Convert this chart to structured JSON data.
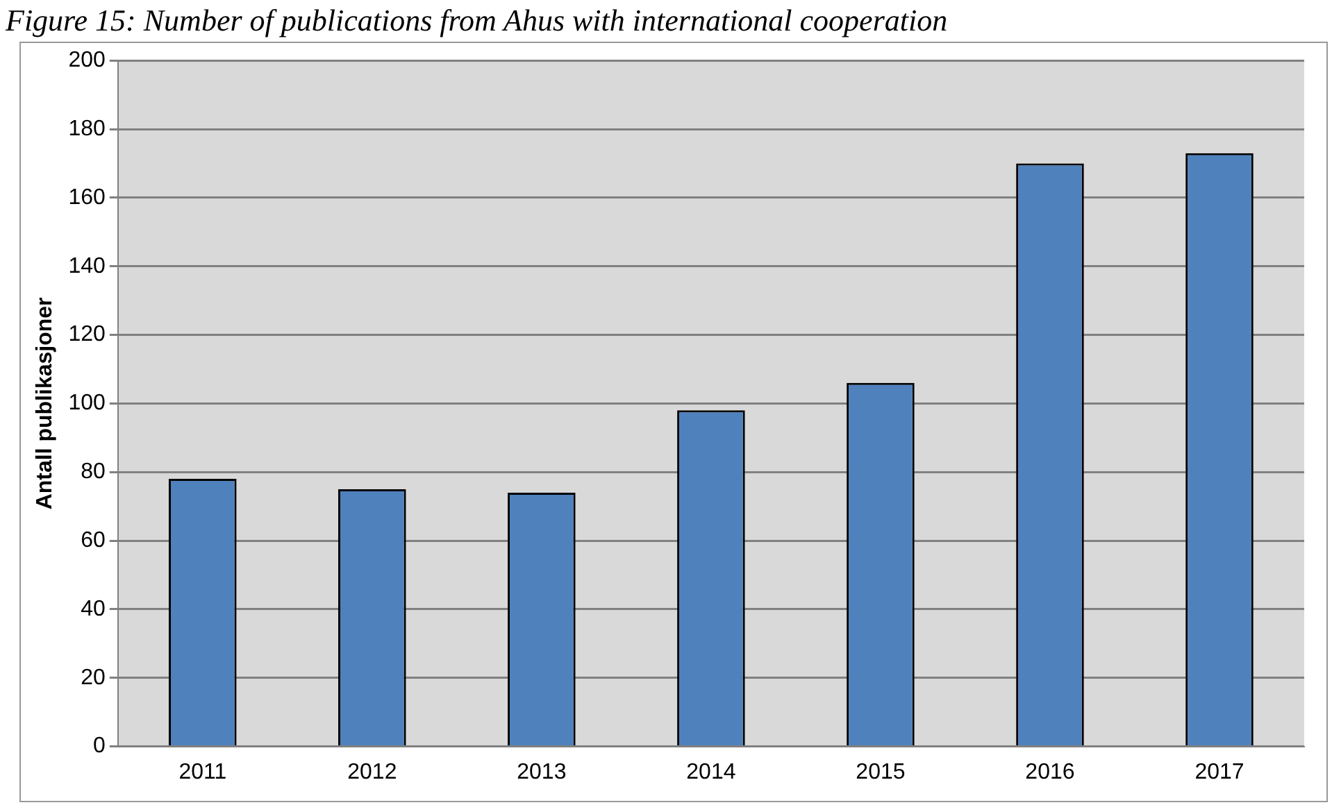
{
  "chart_data": {
    "type": "bar",
    "title": "Figure 15: Number of publications from Ahus with international cooperation",
    "ylabel": "Antall publikasjoner",
    "categories": [
      "2011",
      "2012",
      "2013",
      "2014",
      "2015",
      "2016",
      "2017"
    ],
    "values": [
      78,
      75,
      74,
      98,
      106,
      170,
      173
    ],
    "color": "#4f81bd",
    "ylim": [
      0,
      200
    ],
    "yticks": [
      0,
      20,
      40,
      60,
      80,
      100,
      120,
      140,
      160,
      180,
      200
    ],
    "grid": "y",
    "legend": false
  }
}
